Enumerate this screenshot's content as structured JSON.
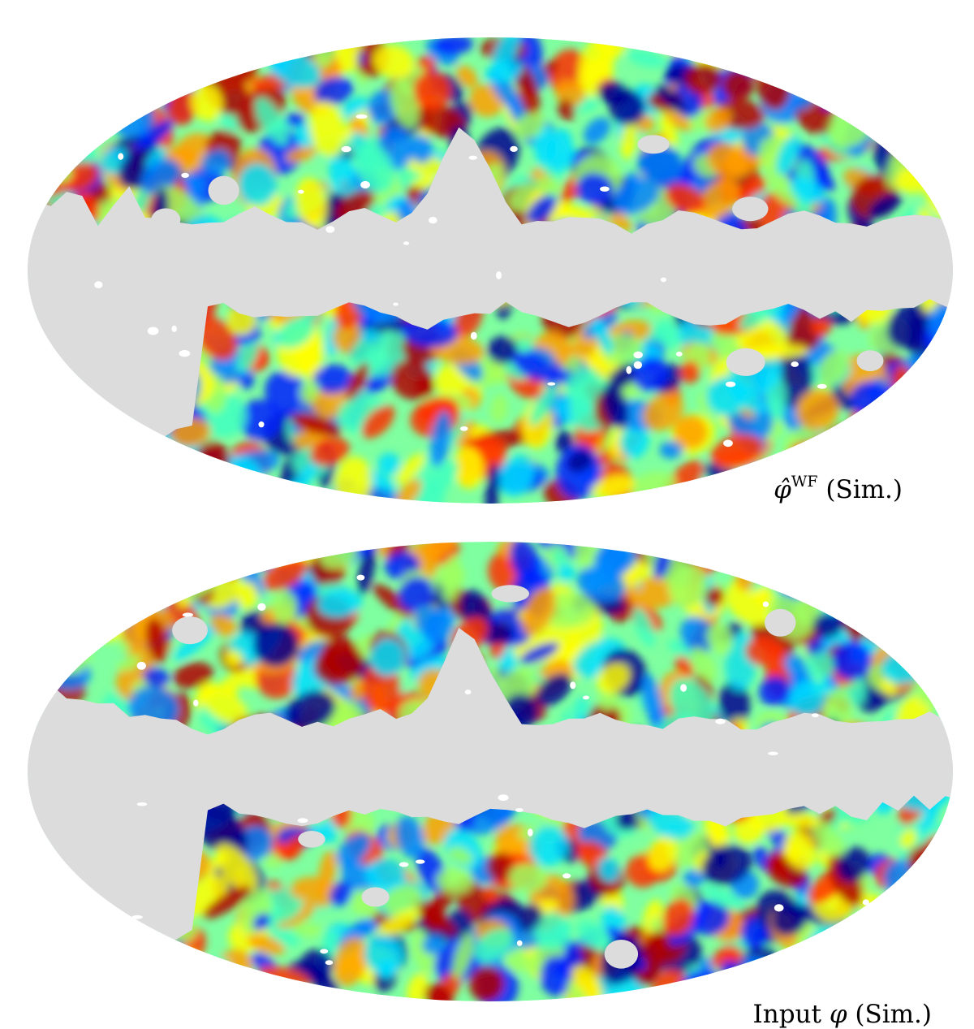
{
  "figure": {
    "projection": "mollweide",
    "mask_color": "#dcdcdc",
    "colormap": "jet",
    "panels": [
      {
        "id": "wiener-filtered",
        "symbol": "φ̂",
        "superscript": "WF",
        "suffix": " (Sim.)",
        "seed": 7
      },
      {
        "id": "input",
        "prefix": "Input ",
        "symbol": "φ",
        "superscript": "",
        "suffix": " (Sim.)",
        "seed": 19
      }
    ]
  }
}
